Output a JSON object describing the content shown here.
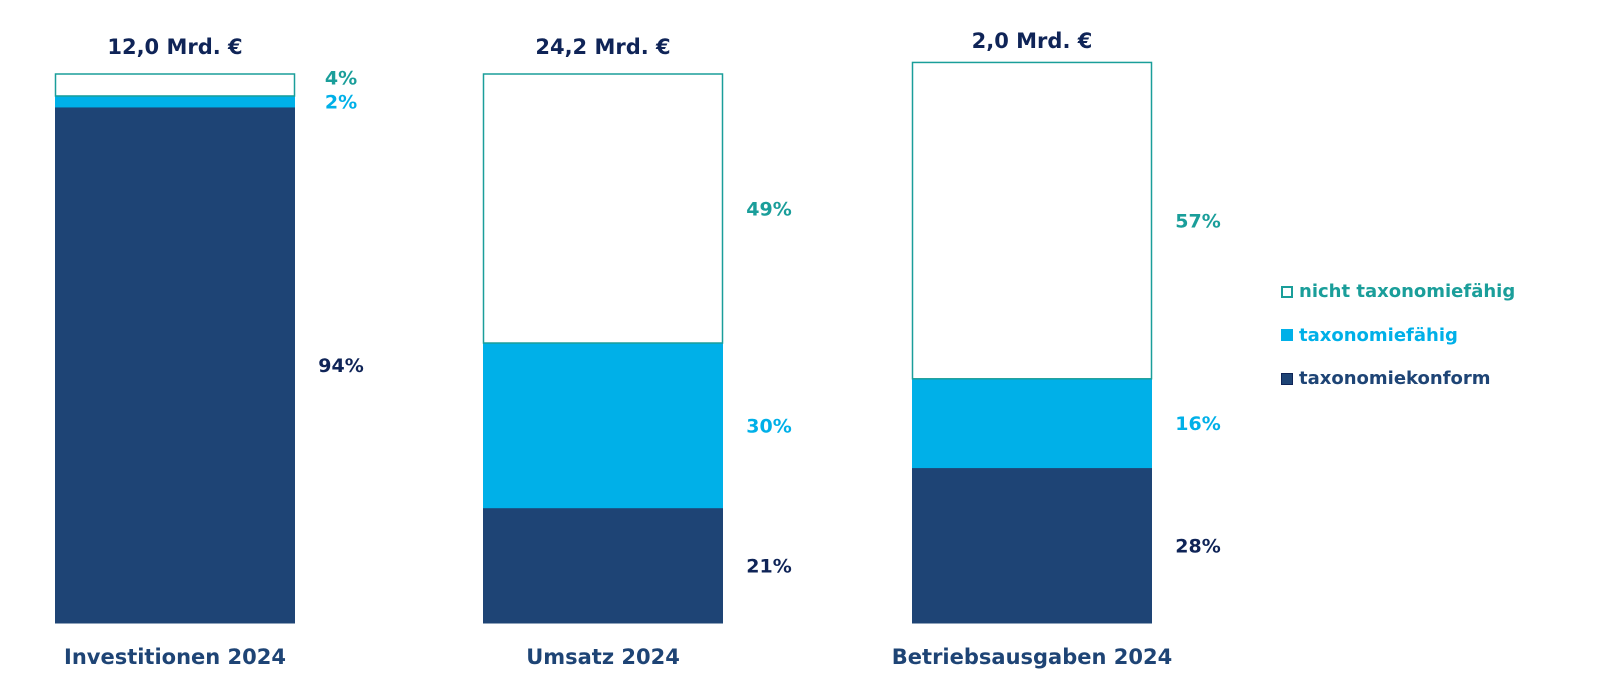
{
  "chart_data": {
    "type": "stacked-bar-100",
    "unit": "%",
    "categories": [
      "Investitionen 2024",
      "Umsatz 2024",
      "Betriebsausgaben 2024"
    ],
    "totals": [
      "12,0 Mrd. €",
      "24,2 Mrd. €",
      "2,0 Mrd. €"
    ],
    "series": [
      {
        "name": "taxonomiekonform",
        "values": [
          94,
          21,
          28
        ],
        "labels": [
          "94%",
          "21%",
          "28%"
        ],
        "color": "#1e4475",
        "label_color": "#0f2457"
      },
      {
        "name": "taxonomiefähig",
        "values": [
          2,
          30,
          16
        ],
        "labels": [
          "2%",
          "30%",
          "16%"
        ],
        "color": "#00b0e8",
        "label_color": "#00b0e8"
      },
      {
        "name": "nicht taxonomiefähig",
        "values": [
          4,
          49,
          57
        ],
        "labels": [
          "4%",
          "49%",
          "57%"
        ],
        "color": "#ffffff",
        "outline": "#1a9e9a",
        "label_color": "#1a9e9a"
      }
    ],
    "legend_position": "right",
    "grid": false,
    "axes_visible": false
  },
  "legend": [
    {
      "label": "nicht taxonomiefähig",
      "color": "#ffffff",
      "outline": "#1a9e9a",
      "text_color": "#1a9e9a"
    },
    {
      "label": "taxonomiefähig",
      "color": "#00b0e8",
      "outline": "#00b0e8",
      "text_color": "#00b0e8"
    },
    {
      "label": "taxonomiekonform",
      "color": "#1e4475",
      "outline": "#0f2457",
      "text_color": "#1e4475"
    }
  ]
}
